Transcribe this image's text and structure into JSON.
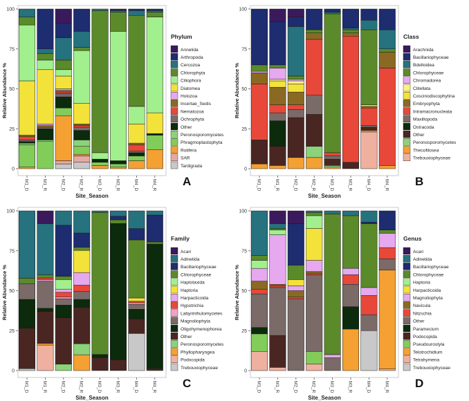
{
  "chart_data": [
    {
      "type": "bar",
      "panel_letter": "A",
      "legend_title": "Phylum",
      "xlabel": "Site_Season",
      "ylabel": "Relative Abundance %",
      "ylim": [
        0,
        100
      ],
      "yticks": [
        0,
        25,
        50,
        75,
        100
      ],
      "categories": [
        "M1_D",
        "M1_R",
        "M2_D",
        "M2_R",
        "M3_D",
        "M3_R",
        "M4_D",
        "M4_R"
      ],
      "series": [
        {
          "name": "Tardigrada",
          "color": "#c8c8c8",
          "values": [
            0,
            0,
            3,
            4,
            0,
            0,
            0,
            0
          ]
        },
        {
          "name": "SAR",
          "color": "#e6a8a0",
          "values": [
            0,
            0,
            2,
            4,
            0,
            0,
            0,
            0
          ]
        },
        {
          "name": "Rotifera",
          "color": "#f5a032",
          "values": [
            1,
            0,
            28,
            1,
            2,
            1,
            5,
            12
          ]
        },
        {
          "name": "Phragmoplastophyta",
          "color": "#82cc5a",
          "values": [
            14,
            17,
            5,
            5,
            2,
            2,
            3,
            9
          ]
        },
        {
          "name": "Peronosporomycetes",
          "color": "#8cd27a",
          "values": [
            1,
            1,
            0,
            4,
            0,
            0,
            0,
            0
          ]
        },
        {
          "name": "Other",
          "color": "#0c2a0c",
          "values": [
            1,
            7,
            7,
            6,
            2,
            2,
            2,
            1
          ]
        },
        {
          "name": "Ochrophyta",
          "color": "#7a6a68",
          "values": [
            1,
            1,
            2,
            2,
            0,
            0,
            1,
            0
          ]
        },
        {
          "name": "Nematozoa",
          "color": "#e8483a",
          "values": [
            2,
            0,
            1,
            1,
            0,
            0,
            4,
            0
          ]
        },
        {
          "name": "Incertae_Sedis",
          "color": "#8a6a22",
          "values": [
            1,
            1,
            1,
            1,
            0,
            0,
            1,
            0
          ]
        },
        {
          "name": "Holozoa",
          "color": "#e6a8ee",
          "values": [
            0,
            1,
            1,
            0,
            0,
            0,
            0,
            0
          ]
        },
        {
          "name": "Diatomea",
          "color": "#f2e23a",
          "values": [
            34,
            34,
            8,
            13,
            0,
            0,
            12,
            13
          ]
        },
        {
          "name": "Ciliophora",
          "color": "#a2ef8e",
          "values": [
            35,
            6,
            4,
            33,
            4,
            81,
            11,
            60
          ]
        },
        {
          "name": "Chlorophyta",
          "color": "#5a8a2a",
          "values": [
            5,
            4,
            6,
            2,
            89,
            12,
            57,
            3
          ]
        },
        {
          "name": "Cercozoa",
          "color": "#26727e",
          "values": [
            5,
            3,
            14,
            10,
            1,
            1,
            3,
            1
          ]
        },
        {
          "name": "Arthropoda",
          "color": "#1e2c70",
          "values": [
            0,
            25,
            9,
            14,
            0,
            0,
            1,
            1
          ]
        },
        {
          "name": "Annelida",
          "color": "#3a1a5c",
          "values": [
            0,
            0,
            9,
            0,
            0,
            1,
            0,
            0
          ]
        }
      ]
    },
    {
      "type": "bar",
      "panel_letter": "B",
      "legend_title": "Class",
      "xlabel": "Site_Season",
      "ylabel": "Relative Abundance %",
      "ylim": [
        0,
        100
      ],
      "yticks": [
        0,
        25,
        50,
        75,
        100
      ],
      "categories": [
        "M1_D",
        "M1_R",
        "M2_D",
        "M2_R",
        "M3_D",
        "M3_R",
        "M4_D",
        "M4_R"
      ],
      "series": [
        {
          "name": "Trebouxiophyceae",
          "color": "#f0b0a0",
          "values": [
            0,
            0,
            0,
            0,
            0,
            0,
            23,
            0
          ]
        },
        {
          "name": "Thecofilosea",
          "color": "#f5a032",
          "values": [
            3,
            2,
            7,
            7,
            1,
            0,
            1,
            2
          ]
        },
        {
          "name": "Peronosporomycetes",
          "color": "#8cd27a",
          "values": [
            0,
            0,
            0,
            7,
            1,
            0,
            0,
            0
          ]
        },
        {
          "name": "Other",
          "color": "#4a2622",
          "values": [
            15,
            12,
            25,
            20,
            4,
            4,
            2,
            0
          ]
        },
        {
          "name": "Ostracoda",
          "color": "#0c2a0c",
          "values": [
            0,
            16,
            0,
            0,
            0,
            0,
            0,
            0
          ]
        },
        {
          "name": "Maxillopoda",
          "color": "#7a6a68",
          "values": [
            0,
            5,
            5,
            12,
            2,
            0,
            1,
            0
          ]
        },
        {
          "name": "Intramacronucleata",
          "color": "#e8483a",
          "values": [
            35,
            5,
            3,
            35,
            2,
            79,
            11,
            61
          ]
        },
        {
          "name": "Embryophyta",
          "color": "#8a6a22",
          "values": [
            7,
            11,
            8,
            4,
            0,
            2,
            1,
            10
          ]
        },
        {
          "name": "Coscinodiscophytina",
          "color": "#f2e23a",
          "values": [
            0,
            4,
            5,
            0,
            0,
            0,
            1,
            0
          ]
        },
        {
          "name": "Clitellata",
          "color": "#fff08a",
          "values": [
            0,
            1,
            2,
            0,
            0,
            0,
            0,
            0
          ]
        },
        {
          "name": "Chromadorea",
          "color": "#e6a8ee",
          "values": [
            1,
            7,
            1,
            0,
            0,
            0,
            0,
            0
          ]
        },
        {
          "name": "Chlorophyceae",
          "color": "#5a8a2a",
          "values": [
            4,
            2,
            2,
            2,
            87,
            2,
            47,
            2
          ]
        },
        {
          "name": "Bdelloidea",
          "color": "#26727e",
          "values": [
            0,
            0,
            31,
            0,
            1,
            1,
            6,
            12
          ]
        },
        {
          "name": "Bacillariophyceae",
          "color": "#1e2c70",
          "values": [
            35,
            27,
            6,
            13,
            2,
            12,
            7,
            13
          ]
        },
        {
          "name": "Arachnida",
          "color": "#3a1a5c",
          "values": [
            0,
            8,
            5,
            0,
            0,
            0,
            0,
            0
          ]
        }
      ]
    },
    {
      "type": "bar",
      "panel_letter": "C",
      "legend_title": "Family",
      "xlabel": "Site_Season",
      "ylabel": "Relative Abundance %",
      "ylim": [
        0,
        100
      ],
      "yticks": [
        0,
        25,
        50,
        75,
        100
      ],
      "categories": [
        "M1_D",
        "M1_R",
        "M2_D",
        "M2_R",
        "M3_D",
        "M3_R",
        "M4_D",
        "M4_R"
      ],
      "series": [
        {
          "name": "Trebouxiophyceae",
          "color": "#c8c8c8",
          "values": [
            1,
            0,
            0,
            0,
            0,
            0,
            23,
            0
          ]
        },
        {
          "name": "Podocopida",
          "color": "#f0b0a0",
          "values": [
            0,
            16,
            0,
            0,
            0,
            0,
            0,
            0
          ]
        },
        {
          "name": "Phyllopharyngea",
          "color": "#f5a032",
          "values": [
            0,
            1,
            0,
            10,
            0,
            0,
            0,
            0
          ]
        },
        {
          "name": "Peronosporomycetes",
          "color": "#8cd27a",
          "values": [
            0,
            0,
            4,
            7,
            0,
            0,
            0,
            0
          ]
        },
        {
          "name": "Other",
          "color": "#4a2622",
          "values": [
            21,
            20,
            29,
            23,
            8,
            6,
            9,
            1
          ]
        },
        {
          "name": "Oligohymenophorea",
          "color": "#0c2a0c",
          "values": [
            15,
            2,
            8,
            5,
            2,
            76,
            6,
            60
          ]
        },
        {
          "name": "Magnoliophyta",
          "color": "#7a6a68",
          "values": [
            8,
            17,
            4,
            5,
            0,
            0,
            3,
            0
          ]
        },
        {
          "name": "Labyrinthulomycetes",
          "color": "#f5a0c8",
          "values": [
            0,
            1,
            1,
            0,
            0,
            0,
            1,
            0
          ]
        },
        {
          "name": "Hypotrichia",
          "color": "#e8483a",
          "values": [
            0,
            1,
            3,
            4,
            0,
            0,
            1,
            0
          ]
        },
        {
          "name": "Harpacticoida",
          "color": "#e6a8ee",
          "values": [
            0,
            0,
            2,
            8,
            0,
            0,
            0,
            0
          ]
        },
        {
          "name": "Haptoria",
          "color": "#f2e23a",
          "values": [
            0,
            0,
            0,
            14,
            0,
            0,
            2,
            0
          ]
        },
        {
          "name": "Haplotaxida",
          "color": "#a2ef8e",
          "values": [
            0,
            0,
            6,
            0,
            0,
            0,
            0,
            0
          ]
        },
        {
          "name": "Chlorophyceae",
          "color": "#5a8a2a",
          "values": [
            3,
            2,
            2,
            2,
            88,
            2,
            36,
            1
          ]
        },
        {
          "name": "Bacillariophyceae",
          "color": "#1e2c70",
          "values": [
            0,
            0,
            32,
            9,
            0,
            2,
            7,
            13
          ]
        },
        {
          "name": "Adinetida",
          "color": "#26727e",
          "values": [
            35,
            32,
            9,
            14,
            1,
            3,
            11,
            2
          ]
        },
        {
          "name": "Acari",
          "color": "#3a1a5c",
          "values": [
            0,
            8,
            0,
            0,
            0,
            0,
            0,
            0
          ]
        }
      ]
    },
    {
      "type": "bar",
      "panel_letter": "D",
      "legend_title": "Genus",
      "xlabel": "Site_Season",
      "ylabel": "Relative Abundance %",
      "ylim": [
        0,
        100
      ],
      "yticks": [
        0,
        25,
        50,
        75,
        100
      ],
      "categories": [
        "M1_D",
        "M1_R",
        "M2_D",
        "M2_R",
        "M3_D",
        "M3_R",
        "M4_D",
        "M4_R"
      ],
      "series": [
        {
          "name": "Trebouxiophyceae",
          "color": "#c8c8c8",
          "values": [
            0,
            0,
            0,
            0,
            0,
            0,
            25,
            0
          ]
        },
        {
          "name": "Tetrahymena",
          "color": "#f0b0a0",
          "values": [
            12,
            2,
            0,
            4,
            0,
            0,
            0,
            1
          ]
        },
        {
          "name": "Telotrochidium",
          "color": "#f5a032",
          "values": [
            0,
            0,
            0,
            0,
            0,
            26,
            0,
            62
          ]
        },
        {
          "name": "Pseudourostyla",
          "color": "#82cc5a",
          "values": [
            11,
            0,
            0,
            8,
            0,
            0,
            0,
            0
          ]
        },
        {
          "name": "Podocopida",
          "color": "#4a2622",
          "values": [
            0,
            20,
            0,
            0,
            0,
            0,
            0,
            0
          ]
        },
        {
          "name": "Paramecium",
          "color": "#0c2a0c",
          "values": [
            4,
            0,
            0,
            0,
            0,
            14,
            0,
            0
          ]
        },
        {
          "name": "Other",
          "color": "#7a6a68",
          "values": [
            21,
            30,
            45,
            48,
            8,
            14,
            10,
            7
          ]
        },
        {
          "name": "Nitzschia",
          "color": "#e8483a",
          "values": [
            3,
            1,
            1,
            1,
            0,
            6,
            12,
            7
          ]
        },
        {
          "name": "Navicula",
          "color": "#8a6a22",
          "values": [
            5,
            1,
            4,
            1,
            0,
            0,
            0,
            0
          ]
        },
        {
          "name": "Magnoliophyta",
          "color": "#e6a8ee",
          "values": [
            8,
            31,
            3,
            7,
            2,
            4,
            5,
            9
          ]
        },
        {
          "name": "Harpacticoida",
          "color": "#f2e23a",
          "values": [
            0,
            0,
            4,
            20,
            0,
            0,
            0,
            0
          ]
        },
        {
          "name": "Haptoria",
          "color": "#a2ef8e",
          "values": [
            5,
            3,
            0,
            8,
            0,
            0,
            0,
            0
          ]
        },
        {
          "name": "Chlorophyceae",
          "color": "#5a8a2a",
          "values": [
            3,
            1,
            9,
            2,
            88,
            33,
            40,
            2
          ]
        },
        {
          "name": "Bacillariophyceae",
          "color": "#1e2c70",
          "values": [
            0,
            0,
            26,
            0,
            0,
            0,
            1,
            12
          ]
        },
        {
          "name": "Adinetida",
          "color": "#26727e",
          "values": [
            28,
            3,
            0,
            1,
            2,
            3,
            7,
            0
          ]
        },
        {
          "name": "Acari",
          "color": "#3a1a5c",
          "values": [
            0,
            8,
            8,
            0,
            0,
            0,
            0,
            0
          ]
        }
      ]
    }
  ]
}
